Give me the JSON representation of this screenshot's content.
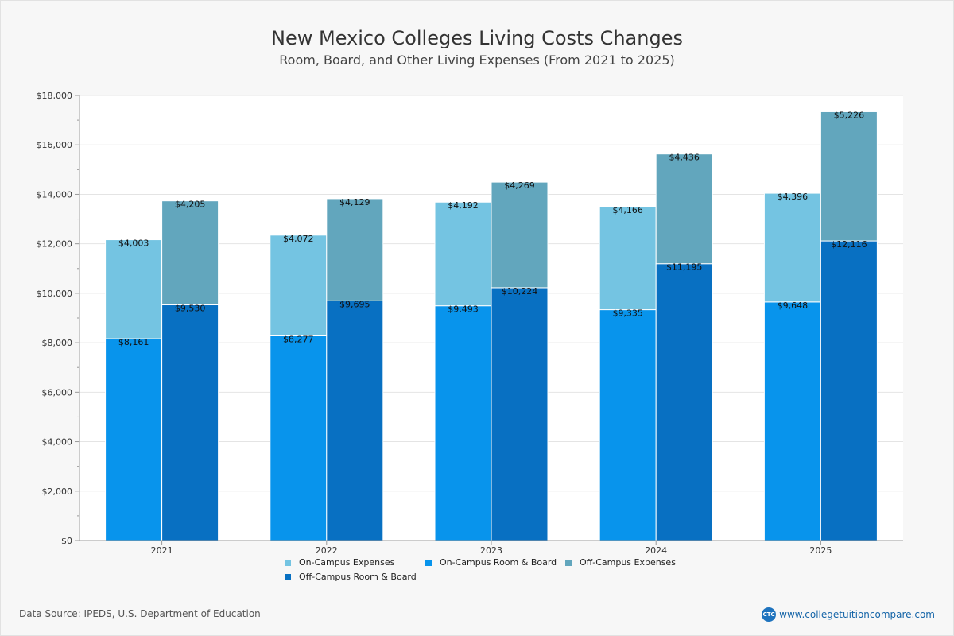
{
  "page": {
    "title": "New Mexico Colleges  Living Costs Changes",
    "subtitle": "Room, Board, and Other Living Expenses (From 2021 to 2025)",
    "source": "Data Source: IPEDS, U.S. Department of Education",
    "site": "www.collegetuitioncompare.com",
    "logo_text": "CTC"
  },
  "colors": {
    "on_campus_expenses": "#74c4e2",
    "on_campus_room_board": "#0894ec",
    "off_campus_expenses": "#62a6bd",
    "off_campus_room_board": "#0870c2",
    "grid": "#e4e4e4",
    "axis": "#999999"
  },
  "chart_data": {
    "type": "bar",
    "stacked": true,
    "title": "New Mexico Colleges  Living Costs Changes",
    "subtitle": "Room, Board, and Other Living Expenses (From 2021 to 2025)",
    "categories": [
      "2021",
      "2022",
      "2023",
      "2024",
      "2025"
    ],
    "ylim": [
      0,
      18000
    ],
    "yticks": [
      0,
      2000,
      4000,
      6000,
      8000,
      10000,
      12000,
      14000,
      16000,
      18000
    ],
    "ytick_labels": [
      "$0",
      "$2,000",
      "$4,000",
      "$6,000",
      "$8,000",
      "$10,000",
      "$12,000",
      "$14,000",
      "$16,000",
      "$18,000"
    ],
    "xlabel": "",
    "ylabel": "",
    "legend_position": "bottom",
    "stacks": [
      {
        "name": "On-Campus",
        "series": [
          {
            "name": "On-Campus Room & Board",
            "color_key": "on_campus_room_board",
            "values": [
              8161,
              8277,
              9493,
              9335,
              9648
            ],
            "labels": [
              "$8,161",
              "$8,277",
              "$9,493",
              "$9,335",
              "$9,648"
            ]
          },
          {
            "name": "On-Campus Expenses",
            "color_key": "on_campus_expenses",
            "values": [
              4003,
              4072,
              4192,
              4166,
              4396
            ],
            "labels": [
              "$4,003",
              "$4,072",
              "$4,192",
              "$4,166",
              "$4,396"
            ]
          }
        ]
      },
      {
        "name": "Off-Campus",
        "series": [
          {
            "name": "Off-Campus Room & Board",
            "color_key": "off_campus_room_board",
            "values": [
              9530,
              9695,
              10224,
              11195,
              12116
            ],
            "labels": [
              "$9,530",
              "$9,695",
              "$10,224",
              "$11,195",
              "$12,116"
            ]
          },
          {
            "name": "Off-Campus Expenses",
            "color_key": "off_campus_expenses",
            "values": [
              4205,
              4129,
              4269,
              4436,
              5226
            ],
            "labels": [
              "$4,205",
              "$4,129",
              "$4,269",
              "$4,436",
              "$5,226"
            ]
          }
        ]
      }
    ],
    "legend": [
      {
        "label": "On-Campus Expenses",
        "color_key": "on_campus_expenses"
      },
      {
        "label": "On-Campus Room & Board",
        "color_key": "on_campus_room_board"
      },
      {
        "label": "Off-Campus Expenses",
        "color_key": "off_campus_expenses"
      },
      {
        "label": "Off-Campus Room & Board",
        "color_key": "off_campus_room_board"
      }
    ]
  }
}
